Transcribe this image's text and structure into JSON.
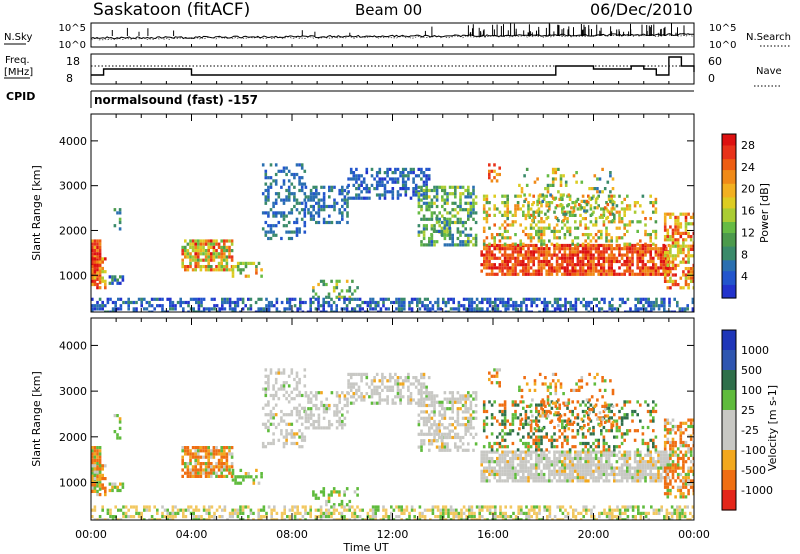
{
  "header": {
    "station": "Saskatoon (fitACF)",
    "beam": "Beam 00",
    "date": "06/Dec/2010"
  },
  "labels": {
    "nsky": "N.Sky",
    "nsearch": "N.Search",
    "freq_line1": "Freq.",
    "freq_line2": "[MHz]",
    "nave": "Nave",
    "cpid": "CPID",
    "cpid_value": "normalsound (fast) -157",
    "time_axis": "Time UT",
    "ylabel": "Slant Range [km]",
    "power_label": "Power [dB]",
    "velocity_label": "Velocity [m s-1]"
  },
  "noise_ticks": [
    "10^5",
    "10^0",
    "10^5",
    "10^0"
  ],
  "freq_ticks": {
    "left": [
      "18",
      "8"
    ],
    "right": [
      "60",
      "0"
    ]
  },
  "chart_data": [
    {
      "type": "line",
      "title": "N.Sky / N.Search",
      "y_scale": "log",
      "ylim": [
        1,
        100000
      ],
      "x": [
        "00:00",
        "04:00",
        "08:00",
        "12:00",
        "16:00",
        "20:00",
        "00:00"
      ]
    },
    {
      "type": "line",
      "series": [
        {
          "name": "Freq.",
          "x": [
            "00:00",
            "00:30",
            "01:00",
            "03:30",
            "04:00",
            "16:00",
            "17:30",
            "18:30",
            "20:00",
            "21:30",
            "22:00",
            "22:30",
            "23:00",
            "23:30",
            "24:00"
          ],
          "values": [
            11,
            13,
            13,
            13,
            11,
            11,
            11,
            14,
            13,
            14,
            13,
            11,
            17,
            14,
            12
          ]
        },
        {
          "name": "Nave",
          "x": [
            "00:00",
            "24:00"
          ],
          "values": [
            36,
            36
          ]
        }
      ],
      "xlim": [
        "00:00",
        "24:00"
      ]
    },
    {
      "type": "heatmap",
      "title": "Power [dB]",
      "ylabel": "Slant Range [km]",
      "xlabel": "Time UT",
      "x_ticks": [
        "00:00",
        "04:00",
        "08:00",
        "12:00",
        "16:00",
        "20:00",
        "00:00"
      ],
      "y_ticks": [
        1000,
        2000,
        3000,
        4000
      ],
      "ylim": [
        180,
        4600
      ],
      "colorbar": {
        "ticks": [
          4,
          8,
          12,
          16,
          20,
          24,
          28
        ],
        "range": [
          0,
          30
        ]
      }
    },
    {
      "type": "heatmap",
      "title": "Velocity [m s-1]",
      "ylabel": "Slant Range [km]",
      "xlabel": "Time UT",
      "x_ticks": [
        "00:00",
        "04:00",
        "08:00",
        "12:00",
        "16:00",
        "20:00",
        "00:00"
      ],
      "y_ticks": [
        1000,
        2000,
        3000,
        4000
      ],
      "ylim": [
        180,
        4600
      ],
      "colorbar": {
        "ticks": [
          "1000",
          "500",
          "100",
          "25",
          "-25",
          "-100",
          "-500",
          "-1000"
        ]
      }
    }
  ]
}
